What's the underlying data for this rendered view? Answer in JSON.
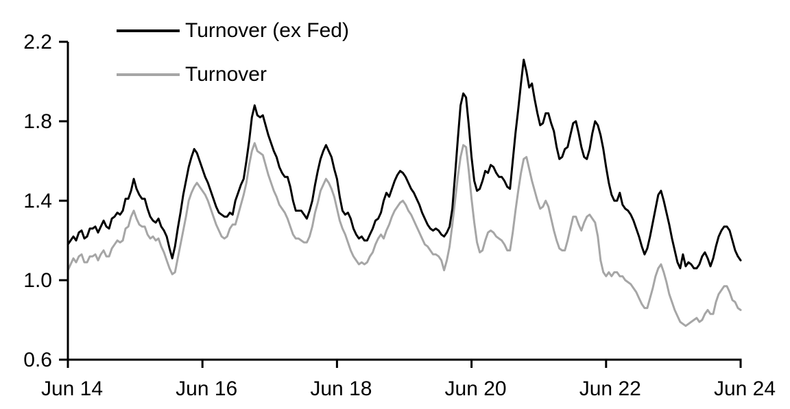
{
  "chart_data": {
    "type": "line",
    "title": "",
    "x_axis": {
      "label": "",
      "tick_labels": [
        "Jun 14",
        "Jun 16",
        "Jun 18",
        "Jun 20",
        "Jun 22",
        "Jun 24"
      ],
      "tick_positions_years": [
        0,
        2,
        4,
        6,
        8,
        10
      ],
      "range_years": [
        0,
        10
      ],
      "grid": false
    },
    "y_axis": {
      "label": "",
      "min": 0.6,
      "max": 2.2,
      "ticks": [
        2.2,
        1.8,
        1.4,
        1.0,
        0.6
      ],
      "tick_labels": [
        "2.2",
        "1.8",
        "1.4",
        "1.0",
        "0.6"
      ],
      "grid": false
    },
    "legend": {
      "position": "top-left"
    },
    "sampling": {
      "x_start_years": 0,
      "x_step_years": 0.0408163
    },
    "series": [
      {
        "name": "Turnover (ex Fed)",
        "color": "#000000",
        "values": [
          1.18,
          1.2,
          1.22,
          1.2,
          1.24,
          1.25,
          1.21,
          1.22,
          1.26,
          1.26,
          1.27,
          1.24,
          1.27,
          1.3,
          1.27,
          1.26,
          1.31,
          1.32,
          1.34,
          1.33,
          1.35,
          1.41,
          1.41,
          1.45,
          1.51,
          1.46,
          1.43,
          1.41,
          1.41,
          1.36,
          1.32,
          1.3,
          1.29,
          1.31,
          1.27,
          1.25,
          1.22,
          1.16,
          1.11,
          1.17,
          1.26,
          1.34,
          1.43,
          1.5,
          1.57,
          1.62,
          1.66,
          1.64,
          1.6,
          1.56,
          1.52,
          1.49,
          1.45,
          1.41,
          1.37,
          1.34,
          1.33,
          1.32,
          1.32,
          1.34,
          1.33,
          1.4,
          1.44,
          1.48,
          1.51,
          1.6,
          1.7,
          1.82,
          1.88,
          1.83,
          1.82,
          1.83,
          1.78,
          1.73,
          1.69,
          1.65,
          1.62,
          1.57,
          1.54,
          1.52,
          1.52,
          1.47,
          1.4,
          1.35,
          1.35,
          1.35,
          1.33,
          1.31,
          1.35,
          1.4,
          1.48,
          1.55,
          1.61,
          1.65,
          1.68,
          1.65,
          1.62,
          1.56,
          1.51,
          1.42,
          1.35,
          1.33,
          1.34,
          1.31,
          1.26,
          1.23,
          1.21,
          1.22,
          1.2,
          1.2,
          1.23,
          1.26,
          1.3,
          1.31,
          1.34,
          1.4,
          1.44,
          1.42,
          1.46,
          1.5,
          1.53,
          1.55,
          1.54,
          1.52,
          1.49,
          1.46,
          1.44,
          1.41,
          1.38,
          1.34,
          1.31,
          1.28,
          1.26,
          1.25,
          1.26,
          1.25,
          1.23,
          1.22,
          1.24,
          1.27,
          1.36,
          1.53,
          1.71,
          1.88,
          1.94,
          1.92,
          1.78,
          1.62,
          1.5,
          1.45,
          1.46,
          1.5,
          1.55,
          1.54,
          1.58,
          1.57,
          1.54,
          1.52,
          1.52,
          1.5,
          1.47,
          1.46,
          1.6,
          1.74,
          1.86,
          1.99,
          2.11,
          2.05,
          1.97,
          1.99,
          1.91,
          1.84,
          1.78,
          1.79,
          1.84,
          1.84,
          1.79,
          1.75,
          1.67,
          1.61,
          1.62,
          1.66,
          1.67,
          1.73,
          1.79,
          1.8,
          1.74,
          1.67,
          1.62,
          1.61,
          1.66,
          1.74,
          1.8,
          1.78,
          1.73,
          1.66,
          1.57,
          1.49,
          1.43,
          1.4,
          1.4,
          1.44,
          1.38,
          1.36,
          1.35,
          1.33,
          1.3,
          1.26,
          1.22,
          1.17,
          1.13,
          1.16,
          1.22,
          1.29,
          1.36,
          1.43,
          1.45,
          1.4,
          1.34,
          1.28,
          1.21,
          1.15,
          1.09,
          1.06,
          1.13,
          1.07,
          1.09,
          1.08,
          1.06,
          1.06,
          1.08,
          1.12,
          1.14,
          1.11,
          1.07,
          1.11,
          1.17,
          1.22,
          1.25,
          1.27,
          1.27,
          1.25,
          1.2,
          1.15,
          1.12,
          1.1
        ]
      },
      {
        "name": "Turnover",
        "color": "#a6a6a6",
        "values": [
          1.05,
          1.08,
          1.11,
          1.09,
          1.12,
          1.13,
          1.09,
          1.09,
          1.12,
          1.12,
          1.13,
          1.1,
          1.13,
          1.15,
          1.12,
          1.12,
          1.16,
          1.18,
          1.2,
          1.19,
          1.2,
          1.26,
          1.27,
          1.32,
          1.35,
          1.31,
          1.28,
          1.27,
          1.27,
          1.23,
          1.21,
          1.22,
          1.2,
          1.21,
          1.17,
          1.14,
          1.1,
          1.06,
          1.03,
          1.04,
          1.11,
          1.18,
          1.25,
          1.32,
          1.4,
          1.44,
          1.47,
          1.49,
          1.47,
          1.45,
          1.43,
          1.4,
          1.36,
          1.32,
          1.28,
          1.25,
          1.22,
          1.21,
          1.22,
          1.26,
          1.28,
          1.28,
          1.33,
          1.38,
          1.43,
          1.49,
          1.58,
          1.65,
          1.69,
          1.65,
          1.64,
          1.63,
          1.58,
          1.53,
          1.49,
          1.45,
          1.42,
          1.38,
          1.36,
          1.34,
          1.31,
          1.27,
          1.23,
          1.21,
          1.21,
          1.2,
          1.19,
          1.19,
          1.22,
          1.27,
          1.34,
          1.39,
          1.45,
          1.48,
          1.51,
          1.49,
          1.46,
          1.42,
          1.36,
          1.3,
          1.26,
          1.23,
          1.19,
          1.15,
          1.12,
          1.1,
          1.08,
          1.09,
          1.08,
          1.09,
          1.12,
          1.14,
          1.18,
          1.21,
          1.23,
          1.21,
          1.25,
          1.28,
          1.32,
          1.35,
          1.37,
          1.39,
          1.4,
          1.38,
          1.35,
          1.33,
          1.3,
          1.27,
          1.24,
          1.21,
          1.18,
          1.17,
          1.15,
          1.13,
          1.13,
          1.12,
          1.1,
          1.05,
          1.1,
          1.17,
          1.28,
          1.4,
          1.52,
          1.62,
          1.68,
          1.67,
          1.55,
          1.41,
          1.29,
          1.19,
          1.14,
          1.15,
          1.2,
          1.24,
          1.25,
          1.24,
          1.22,
          1.21,
          1.2,
          1.18,
          1.15,
          1.15,
          1.24,
          1.35,
          1.45,
          1.54,
          1.61,
          1.62,
          1.56,
          1.5,
          1.45,
          1.4,
          1.36,
          1.37,
          1.4,
          1.37,
          1.31,
          1.25,
          1.2,
          1.16,
          1.15,
          1.15,
          1.2,
          1.26,
          1.32,
          1.32,
          1.28,
          1.25,
          1.29,
          1.32,
          1.33,
          1.31,
          1.29,
          1.22,
          1.1,
          1.04,
          1.02,
          1.04,
          1.02,
          1.04,
          1.04,
          1.02,
          1.02,
          1.0,
          0.99,
          0.98,
          0.96,
          0.94,
          0.91,
          0.88,
          0.86,
          0.86,
          0.91,
          0.96,
          1.02,
          1.06,
          1.08,
          1.04,
          0.99,
          0.93,
          0.89,
          0.85,
          0.82,
          0.79,
          0.78,
          0.77,
          0.78,
          0.79,
          0.8,
          0.81,
          0.79,
          0.8,
          0.83,
          0.85,
          0.83,
          0.83,
          0.89,
          0.93,
          0.95,
          0.97,
          0.97,
          0.94,
          0.9,
          0.89,
          0.86,
          0.85
        ]
      }
    ]
  }
}
